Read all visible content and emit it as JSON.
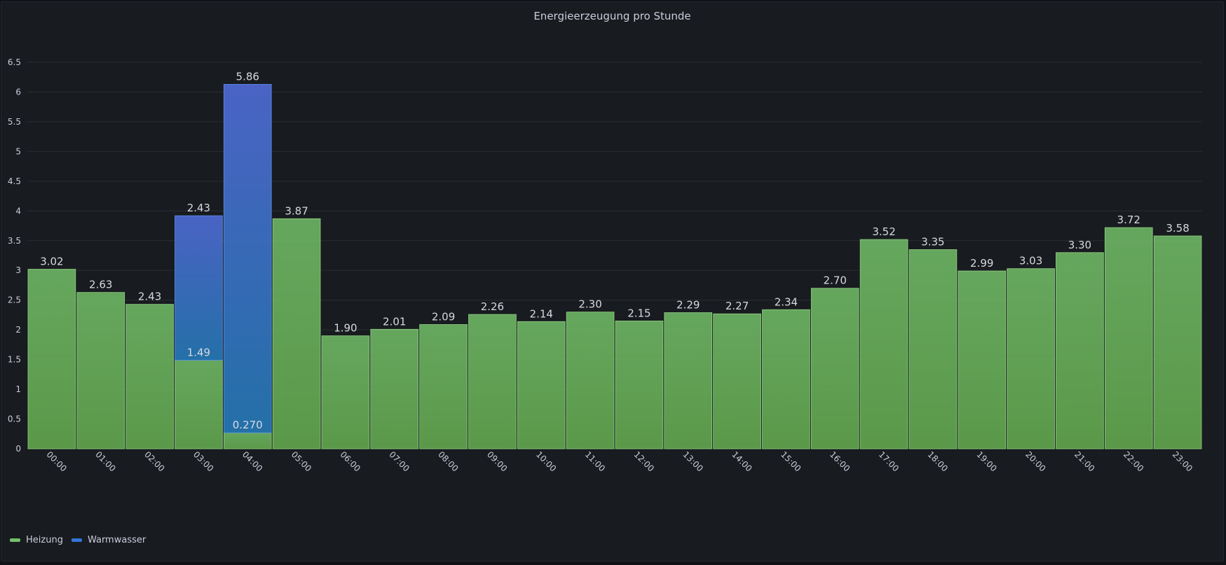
{
  "panel": {
    "title": "Energieerzeugung pro Stunde"
  },
  "colors": {
    "heizung": "#73bf69",
    "warmwasser": "#3274d9"
  },
  "legend": [
    {
      "label": "Heizung",
      "color": "#73bf69"
    },
    {
      "label": "Warmwasser",
      "color": "#3274d9"
    }
  ],
  "chart_data": {
    "type": "bar",
    "stacked": true,
    "title": "Energieerzeugung pro Stunde",
    "xlabel": "",
    "ylabel": "",
    "ylim": [
      0,
      6.5
    ],
    "yticks": [
      "0",
      "0.5",
      "1",
      "1.5",
      "2",
      "2.5",
      "3",
      "3.5",
      "4",
      "4.5",
      "5",
      "5.5",
      "6",
      "6.5"
    ],
    "categories": [
      "00:00",
      "01:00",
      "02:00",
      "03:00",
      "04:00",
      "05:00",
      "06:00",
      "07:00",
      "08:00",
      "09:00",
      "10:00",
      "11:00",
      "12:00",
      "13:00",
      "14:00",
      "15:00",
      "16:00",
      "17:00",
      "18:00",
      "19:00",
      "20:00",
      "21:00",
      "22:00",
      "23:00"
    ],
    "series": [
      {
        "name": "Heizung",
        "values": [
          3.02,
          2.63,
          2.43,
          1.49,
          0.27,
          3.87,
          1.9,
          2.01,
          2.09,
          2.26,
          2.14,
          2.3,
          2.15,
          2.29,
          2.27,
          2.34,
          2.7,
          3.52,
          3.35,
          2.99,
          3.03,
          3.3,
          3.72,
          3.58
        ],
        "labels": [
          "3.02",
          "2.63",
          "2.43",
          "1.49",
          "0.270",
          "3.87",
          "1.90",
          "2.01",
          "2.09",
          "2.26",
          "2.14",
          "2.30",
          "2.15",
          "2.29",
          "2.27",
          "2.34",
          "2.70",
          "3.52",
          "3.35",
          "2.99",
          "3.03",
          "3.30",
          "3.72",
          "3.58"
        ]
      },
      {
        "name": "Warmwasser",
        "values": [
          0,
          0,
          0,
          2.43,
          5.86,
          0,
          0,
          0,
          0,
          0,
          0,
          0,
          0,
          0,
          0,
          0,
          0,
          0,
          0,
          0,
          0,
          0,
          0,
          0
        ],
        "labels": [
          "",
          "",
          "",
          "2.43",
          "5.86",
          "",
          "",
          "",
          "",
          "",
          "",
          "",
          "",
          "",
          "",
          "",
          "",
          "",
          "",
          "",
          "",
          "",
          "",
          ""
        ]
      }
    ],
    "grid": true,
    "legend_position": "bottom-left"
  }
}
